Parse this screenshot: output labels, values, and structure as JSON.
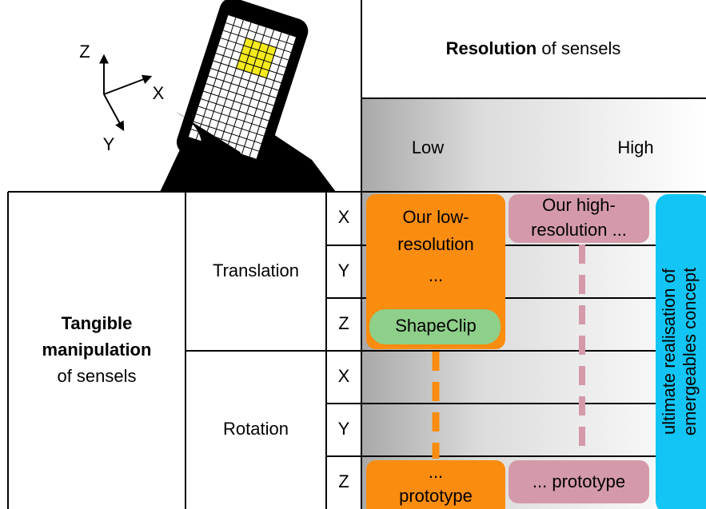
{
  "header": {
    "title_bold": "Resolution",
    "title_rest": " of sensels",
    "low": "Low",
    "high": "High"
  },
  "axes_icon": {
    "z": "Z",
    "x": "X",
    "y": "Y"
  },
  "rows": {
    "title_bold_1": "Tangible",
    "title_bold_2": "manipulation",
    "title_rest": "of sensels",
    "groups": [
      {
        "label": "Translation",
        "axes": [
          "X",
          "Y",
          "Z"
        ]
      },
      {
        "label": "Rotation",
        "axes": [
          "X",
          "Y",
          "Z"
        ]
      }
    ]
  },
  "low_res": {
    "lines": [
      "Our low-",
      "resolution",
      "..."
    ],
    "tag": "ShapeClip",
    "end": [
      "...",
      "prototype"
    ]
  },
  "high_res": {
    "lines": [
      "Our high-",
      "resolution ..."
    ],
    "end": "... prototype"
  },
  "ultimate": [
    "ultimate realisation of",
    "emergeables concept"
  ]
}
